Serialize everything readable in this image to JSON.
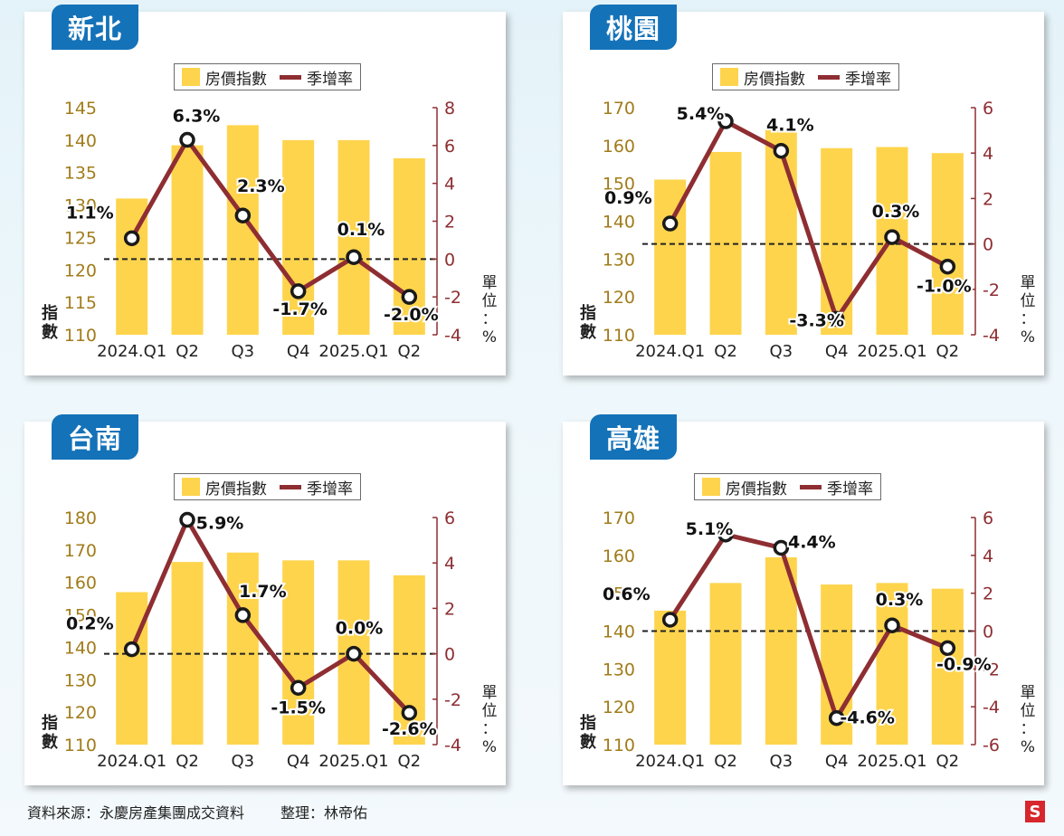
{
  "legend": {
    "bar_label": "房價指數",
    "line_label": "季增率"
  },
  "left_axis_label": [
    "指",
    "數"
  ],
  "right_axis_label": [
    "單",
    "位",
    "：",
    "%"
  ],
  "colors": {
    "bar": "#fed44d",
    "line": "#8e2e32",
    "left_tick": "#a17c1a",
    "right_tick": "#8e2e32",
    "badge": "#1472b8"
  },
  "footer": {
    "source": "資料來源：永慶房產集團成交資料",
    "editor": "整理：林帝佑"
  },
  "logo": "S",
  "chart_data": [
    {
      "type": "bar+line",
      "title": "新北",
      "categories": [
        "2024.Q1",
        "Q2",
        "Q3",
        "Q4",
        "2025.Q1",
        "Q2"
      ],
      "series": [
        {
          "name": "房價指數",
          "type": "bar",
          "axis": "left",
          "values": [
            131,
            139.2,
            142.3,
            140,
            140,
            137.2
          ]
        },
        {
          "name": "季增率",
          "type": "line",
          "axis": "right",
          "values": [
            1.1,
            6.3,
            2.3,
            -1.7,
            0.1,
            -2.0
          ]
        }
      ],
      "point_labels": [
        "1.1%",
        "6.3%",
        "2.3%",
        "-1.7%",
        "0.1%",
        "-2.0%"
      ],
      "left_axis": {
        "range": [
          110,
          145
        ],
        "ticks": [
          145,
          140,
          135,
          130,
          125,
          120,
          115,
          110
        ]
      },
      "right_axis": {
        "range": [
          -4,
          8
        ],
        "ticks": [
          8,
          6,
          4,
          2,
          0,
          -2,
          -4
        ]
      },
      "zero_line": true
    },
    {
      "type": "bar+line",
      "title": "桃園",
      "categories": [
        "2024.Q1",
        "Q2",
        "Q3",
        "Q4",
        "2025.Q1",
        "Q2"
      ],
      "series": [
        {
          "name": "房價指數",
          "type": "bar",
          "axis": "left",
          "values": [
            151,
            158.3,
            164.5,
            159.3,
            159.6,
            158
          ]
        },
        {
          "name": "季增率",
          "type": "line",
          "axis": "right",
          "values": [
            0.9,
            5.4,
            4.1,
            -3.3,
            0.3,
            -1.0
          ]
        }
      ],
      "point_labels": [
        "0.9%",
        "5.4%",
        "4.1%",
        "-3.3%",
        "0.3%",
        "-1.0%"
      ],
      "left_axis": {
        "range": [
          110,
          170
        ],
        "ticks": [
          170,
          160,
          150,
          140,
          130,
          120,
          110
        ]
      },
      "right_axis": {
        "range": [
          -4,
          6
        ],
        "ticks": [
          6,
          4,
          2,
          0,
          -2,
          -4
        ]
      },
      "zero_line": true
    },
    {
      "type": "bar+line",
      "title": "台南",
      "categories": [
        "2024.Q1",
        "Q2",
        "Q3",
        "Q4",
        "2025.Q1",
        "Q2"
      ],
      "series": [
        {
          "name": "房價指數",
          "type": "bar",
          "axis": "left",
          "values": [
            157,
            166.3,
            169.2,
            166.8,
            166.8,
            162.2
          ]
        },
        {
          "name": "季增率",
          "type": "line",
          "axis": "right",
          "values": [
            0.2,
            5.9,
            1.7,
            -1.5,
            0.0,
            -2.6
          ]
        }
      ],
      "point_labels": [
        "0.2%",
        "5.9%",
        "1.7%",
        "-1.5%",
        "0.0%",
        "-2.6%"
      ],
      "left_axis": {
        "range": [
          110,
          180
        ],
        "ticks": [
          180,
          170,
          160,
          150,
          140,
          130,
          120,
          110
        ]
      },
      "right_axis": {
        "range": [
          -4,
          6
        ],
        "ticks": [
          6,
          4,
          2,
          0,
          -2,
          -4
        ]
      },
      "zero_line": true
    },
    {
      "type": "bar+line",
      "title": "高雄",
      "categories": [
        "2024.Q1",
        "Q2",
        "Q3",
        "Q4",
        "2025.Q1",
        "Q2"
      ],
      "series": [
        {
          "name": "房價指數",
          "type": "bar",
          "axis": "left",
          "values": [
            145.4,
            152.7,
            159.5,
            152.3,
            152.7,
            151.2
          ]
        },
        {
          "name": "季增率",
          "type": "line",
          "axis": "right",
          "values": [
            0.6,
            5.1,
            4.4,
            -4.6,
            0.3,
            -0.9
          ]
        }
      ],
      "point_labels": [
        "0.6%",
        "5.1%",
        "4.4%",
        "-4.6%",
        "0.3%",
        "-0.9%"
      ],
      "left_axis": {
        "range": [
          110,
          170
        ],
        "ticks": [
          170,
          160,
          150,
          140,
          130,
          120,
          110
        ]
      },
      "right_axis": {
        "range": [
          -6,
          6
        ],
        "ticks": [
          6,
          4,
          2,
          0,
          -2,
          -4,
          -6
        ]
      },
      "zero_line": true
    }
  ]
}
